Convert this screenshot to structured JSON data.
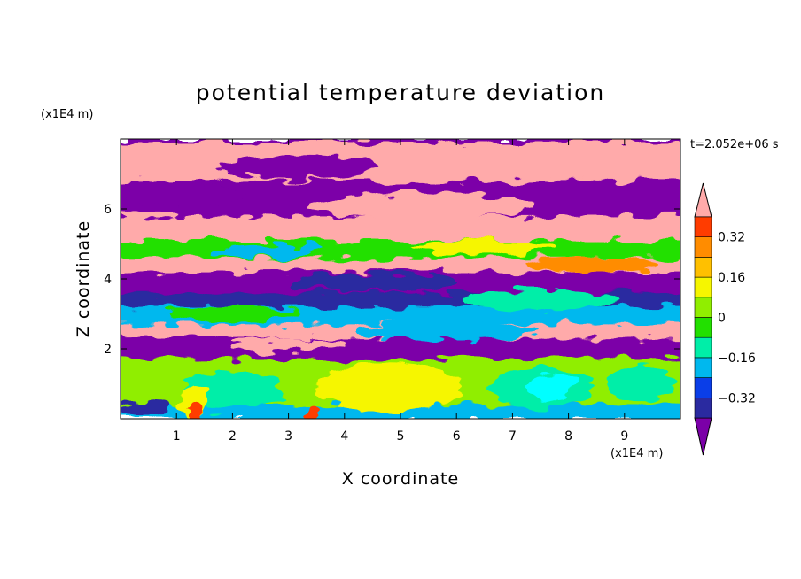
{
  "chart_data": {
    "type": "heatmap",
    "title": "potential temperature deviation",
    "xlabel": "X coordinate",
    "ylabel": "Z coordinate",
    "x_unit": "(x1E4 m)",
    "y_unit": "(x1E4 m)",
    "time_label": "t=2.052e+06 s",
    "xlim": [
      0,
      10
    ],
    "ylim": [
      0,
      8
    ],
    "x_ticks": [
      1,
      2,
      3,
      4,
      5,
      6,
      7,
      8,
      9
    ],
    "y_ticks": [
      2,
      4,
      6
    ],
    "colorbar": {
      "colors": [
        "#7b00a8",
        "#2a2aa0",
        "#0a3ee8",
        "#00b8ee",
        "#00eea8",
        "#22e000",
        "#90ee00",
        "#f6f600",
        "#ffc000",
        "#ff8c00",
        "#ff3c00",
        "#ee2020",
        "#ffaaaa"
      ],
      "levels": [
        -0.4,
        -0.32,
        -0.24,
        -0.16,
        -0.08,
        0,
        0.08,
        0.16,
        0.24,
        0.32,
        0.4
      ],
      "tick_labels": [
        "0.32",
        "0.16",
        "0",
        "−0.16",
        "−0.32"
      ],
      "tick_values": [
        0.32,
        0.16,
        0,
        -0.16,
        -0.32
      ],
      "extend": "both"
    },
    "bands": [
      {
        "z0": 7.9,
        "z1": 8.0,
        "color": "#7b00a8"
      },
      {
        "z0": 6.8,
        "z1": 7.9,
        "color": "#ffaaaa"
      },
      {
        "z0": 5.8,
        "z1": 6.8,
        "color": "#7b00a8"
      },
      {
        "z0": 5.1,
        "z1": 5.8,
        "color": "#ffaaaa"
      },
      {
        "z0": 4.6,
        "z1": 5.1,
        "color": "#22e000"
      },
      {
        "z0": 4.2,
        "z1": 4.6,
        "color": "#ffaaaa"
      },
      {
        "z0": 3.6,
        "z1": 4.2,
        "color": "#7b00a8"
      },
      {
        "z0": 3.2,
        "z1": 3.6,
        "color": "#2a2aa0"
      },
      {
        "z0": 2.7,
        "z1": 3.2,
        "color": "#00b8ee"
      },
      {
        "z0": 2.3,
        "z1": 2.7,
        "color": "#ffaaaa"
      },
      {
        "z0": 1.7,
        "z1": 2.3,
        "color": "#7b00a8"
      },
      {
        "z0": 0.4,
        "z1": 1.7,
        "color": "#90ee00"
      },
      {
        "z0": 0.0,
        "z1": 0.4,
        "color": "#00b8ee"
      }
    ],
    "blobs": [
      {
        "x": 3.2,
        "z": 7.2,
        "rx": 1.4,
        "rz": 0.35,
        "color": "#7b00a8"
      },
      {
        "x": 7.6,
        "z": 7.3,
        "rx": 1.6,
        "rz": 0.4,
        "color": "#ffaaaa"
      },
      {
        "x": 5.4,
        "z": 6.1,
        "rx": 2.0,
        "rz": 0.35,
        "color": "#ffaaaa"
      },
      {
        "x": 1.2,
        "z": 6.4,
        "rx": 1.1,
        "rz": 0.3,
        "color": "#7b00a8"
      },
      {
        "x": 6.5,
        "z": 4.9,
        "rx": 1.3,
        "rz": 0.2,
        "color": "#f6f600"
      },
      {
        "x": 2.6,
        "z": 4.8,
        "rx": 1.0,
        "rz": 0.18,
        "color": "#00b8ee"
      },
      {
        "x": 8.4,
        "z": 4.4,
        "rx": 1.2,
        "rz": 0.2,
        "color": "#ff8c00"
      },
      {
        "x": 4.5,
        "z": 3.9,
        "rx": 1.5,
        "rz": 0.25,
        "color": "#2a2aa0"
      },
      {
        "x": 7.5,
        "z": 3.4,
        "rx": 1.4,
        "rz": 0.3,
        "color": "#00eea8"
      },
      {
        "x": 2.0,
        "z": 3.0,
        "rx": 1.2,
        "rz": 0.2,
        "color": "#22e000"
      },
      {
        "x": 5.8,
        "z": 2.5,
        "rx": 1.6,
        "rz": 0.25,
        "color": "#00b8ee"
      },
      {
        "x": 3.0,
        "z": 2.1,
        "rx": 1.0,
        "rz": 0.2,
        "color": "#ffaaaa"
      },
      {
        "x": 4.8,
        "z": 0.9,
        "rx": 1.3,
        "rz": 0.7,
        "color": "#f6f600"
      },
      {
        "x": 7.5,
        "z": 0.9,
        "rx": 0.9,
        "rz": 0.6,
        "color": "#00eea8"
      },
      {
        "x": 7.7,
        "z": 0.9,
        "rx": 0.45,
        "rz": 0.4,
        "color": "#00ffff"
      },
      {
        "x": 2.0,
        "z": 0.8,
        "rx": 0.9,
        "rz": 0.55,
        "color": "#00eea8"
      },
      {
        "x": 1.3,
        "z": 0.5,
        "rx": 0.25,
        "rz": 0.5,
        "color": "#f6f600"
      },
      {
        "x": 1.35,
        "z": 0.2,
        "rx": 0.12,
        "rz": 0.25,
        "color": "#ff3c00"
      },
      {
        "x": 3.45,
        "z": 0.2,
        "rx": 0.12,
        "rz": 0.25,
        "color": "#ff3c00"
      },
      {
        "x": 9.3,
        "z": 1.0,
        "rx": 0.6,
        "rz": 0.5,
        "color": "#00eea8"
      },
      {
        "x": 0.4,
        "z": 0.3,
        "rx": 0.5,
        "rz": 0.25,
        "color": "#2a2aa0"
      }
    ]
  }
}
